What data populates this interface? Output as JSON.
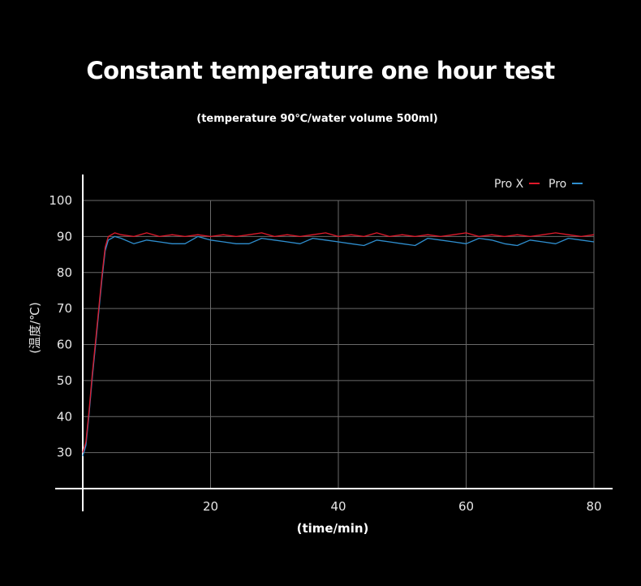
{
  "chart_data": {
    "type": "line",
    "title": "Constant temperature one hour test",
    "subtitle": "(temperature 90℃/water volume 500ml)",
    "xlabel": "(time/min)",
    "ylabel": "(温度/℃)",
    "xlim": [
      0,
      80
    ],
    "ylim": [
      20,
      100
    ],
    "xticks": [
      20,
      40,
      60,
      80
    ],
    "yticks": [
      30,
      40,
      50,
      60,
      70,
      80,
      90,
      100
    ],
    "grid": true,
    "legend_position": "top-right",
    "series": [
      {
        "name": "Pro X",
        "color": "#e0192b",
        "x": [
          0,
          0.5,
          1,
          1.5,
          2,
          2.5,
          3,
          3.5,
          4,
          5,
          6,
          8,
          10,
          12,
          14,
          16,
          18,
          20,
          22,
          24,
          26,
          28,
          30,
          32,
          34,
          36,
          38,
          40,
          42,
          44,
          46,
          48,
          50,
          52,
          54,
          56,
          58,
          60,
          62,
          64,
          66,
          68,
          70,
          72,
          74,
          76,
          78,
          80
        ],
        "values": [
          30,
          33,
          42,
          52,
          61,
          70,
          79,
          87,
          90,
          91,
          90.5,
          90,
          91,
          90,
          90.5,
          90,
          90.5,
          90,
          90.5,
          90,
          90.5,
          91,
          90,
          90.5,
          90,
          90.5,
          91,
          90,
          90.5,
          90,
          91,
          90,
          90.5,
          90,
          90.5,
          90,
          90.5,
          91,
          90,
          90.5,
          90,
          90.5,
          90,
          90.5,
          91,
          90.5,
          90,
          90.5
        ]
      },
      {
        "name": "Pro",
        "color": "#2f8fd0",
        "x": [
          0,
          0.5,
          1,
          1.5,
          2,
          2.5,
          3,
          3.5,
          4,
          5,
          6,
          8,
          10,
          12,
          14,
          16,
          18,
          20,
          22,
          24,
          26,
          28,
          30,
          32,
          34,
          36,
          38,
          40,
          42,
          44,
          46,
          48,
          50,
          52,
          54,
          56,
          58,
          60,
          62,
          64,
          66,
          68,
          70,
          72,
          74,
          76,
          78,
          80
        ],
        "values": [
          29,
          32,
          41,
          51,
          60,
          69,
          78,
          86,
          89,
          90,
          89.5,
          88,
          89,
          88.5,
          88,
          88,
          90,
          89,
          88.5,
          88,
          88,
          89.5,
          89,
          88.5,
          88,
          89.5,
          89,
          88.5,
          88,
          87.5,
          89,
          88.5,
          88,
          87.5,
          89.5,
          89,
          88.5,
          88,
          89.5,
          89,
          88,
          87.5,
          89,
          88.5,
          88,
          89.5,
          89,
          88.5
        ]
      }
    ]
  }
}
